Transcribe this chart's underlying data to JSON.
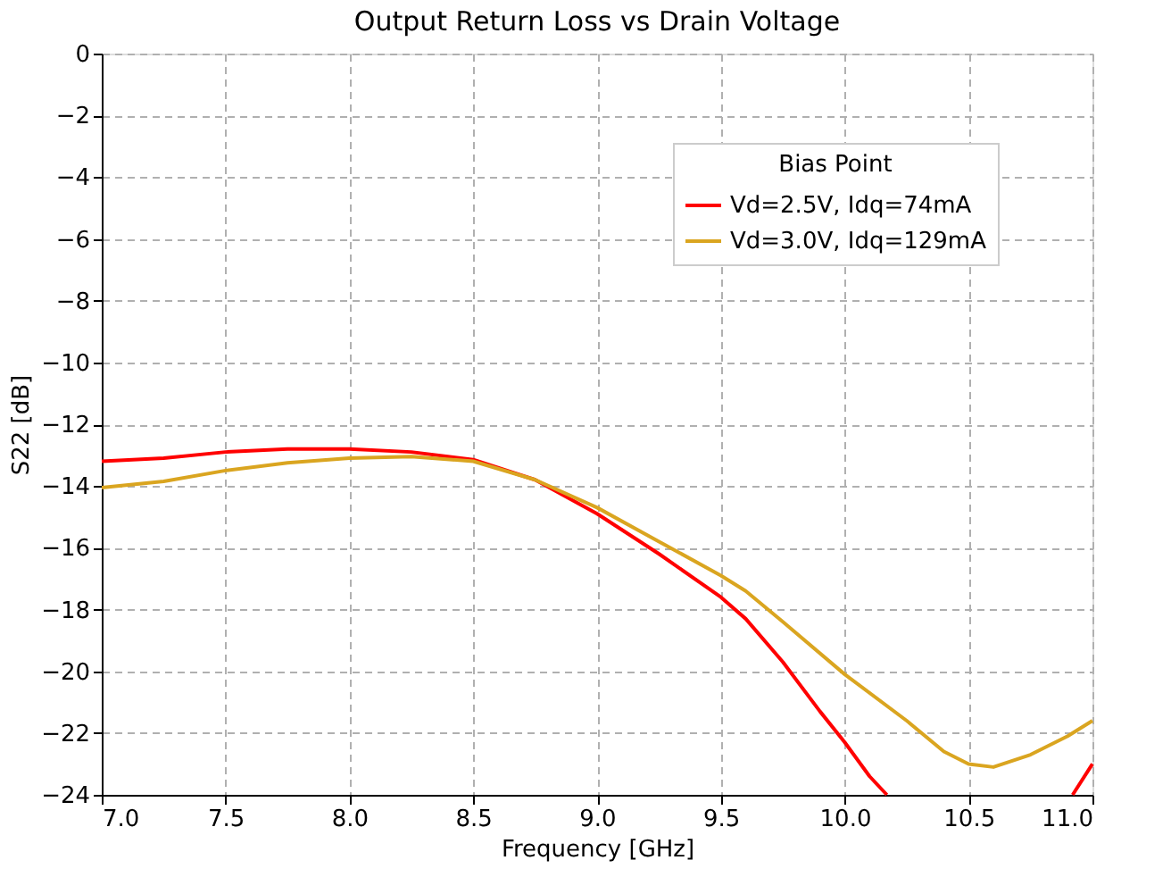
{
  "chart_data": {
    "type": "line",
    "title": "Output Return Loss vs Drain Voltage",
    "xlabel": "Frequency [GHz]",
    "ylabel": "S22 [dB]",
    "legend_title": "Bias Point",
    "xlim": [
      7.0,
      11.0
    ],
    "xticks": [
      {
        "value": 7.0,
        "label": "7.0"
      },
      {
        "value": 7.5,
        "label": "7.5"
      },
      {
        "value": 8.0,
        "label": "8.0"
      },
      {
        "value": 8.5,
        "label": "8.5"
      },
      {
        "value": 9.0,
        "label": "9.0"
      },
      {
        "value": 9.5,
        "label": "9.5"
      },
      {
        "value": 10.0,
        "label": "10.0"
      },
      {
        "value": 10.5,
        "label": "10.5"
      },
      {
        "value": 11.0,
        "label": "11.0"
      }
    ],
    "ylim": [
      -24,
      0
    ],
    "yticks": [
      -24,
      -22,
      -20,
      -18,
      -16,
      -14,
      -12,
      -10,
      -8,
      -6,
      -4,
      -2,
      0
    ],
    "grid": true,
    "legend": "top right",
    "line_style": "solid",
    "marker": "none",
    "series": [
      {
        "name": "Vd=2.5V, Idq=74mA",
        "color": "#ff0000",
        "x": [
          7.0,
          7.25,
          7.5,
          7.75,
          8.0,
          8.25,
          8.5,
          8.75,
          9.0,
          9.25,
          9.5,
          9.6,
          9.75,
          9.9,
          10.0,
          10.1,
          10.17,
          10.5,
          10.92,
          11.0
        ],
        "values": [
          -13.2,
          -13.1,
          -12.9,
          -12.8,
          -12.8,
          -12.9,
          -13.15,
          -13.8,
          -14.9,
          -16.2,
          -17.6,
          -18.3,
          -19.7,
          -21.3,
          -22.3,
          -23.4,
          -24,
          null,
          -24,
          -23.0
        ]
      },
      {
        "name": "Vd=3.0V, Idq=129mA",
        "color": "#daa520",
        "x": [
          7.0,
          7.25,
          7.5,
          7.75,
          8.0,
          8.25,
          8.5,
          8.75,
          9.0,
          9.25,
          9.5,
          9.6,
          9.75,
          10.0,
          10.25,
          10.4,
          10.5,
          10.6,
          10.75,
          10.9,
          11.0
        ],
        "values": [
          -14.05,
          -13.85,
          -13.5,
          -13.25,
          -13.1,
          -13.05,
          -13.2,
          -13.8,
          -14.7,
          -15.8,
          -16.9,
          -17.4,
          -18.4,
          -20.1,
          -21.6,
          -22.6,
          -23.0,
          -23.1,
          -22.7,
          -22.1,
          -21.6
        ]
      }
    ]
  }
}
